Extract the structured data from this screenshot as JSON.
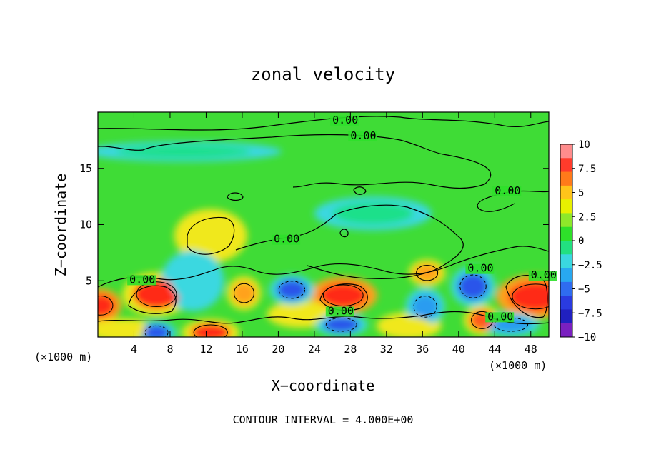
{
  "chart_data": {
    "type": "heatmap",
    "title": "zonal velocity",
    "xlabel": "X−coordinate",
    "ylabel": "Z−coordinate",
    "x_unit_label_left": "(×1000 m)",
    "x_unit_label_right": "(×1000 m)",
    "footer": "CONTOUR INTERVAL = 4.000E+00",
    "xlim": [
      0,
      50
    ],
    "ylim": [
      0,
      20
    ],
    "x_ticks": [
      "4",
      "8",
      "12",
      "16",
      "20",
      "24",
      "28",
      "32",
      "36",
      "40",
      "44",
      "48"
    ],
    "x_tick_values": [
      4,
      8,
      12,
      16,
      20,
      24,
      28,
      32,
      36,
      40,
      44,
      48
    ],
    "y_ticks": [
      "5",
      "10",
      "15"
    ],
    "y_tick_values": [
      5,
      10,
      15
    ],
    "colorbar": {
      "labels": [
        "10",
        "7.5",
        "5",
        "2.5",
        "0",
        "−2.5",
        "−5",
        "−7.5",
        "−10"
      ],
      "values": [
        10,
        7.5,
        5,
        2.5,
        0,
        -2.5,
        -5,
        -7.5,
        -10
      ],
      "colors": [
        "#ff8c8c",
        "#ff3b2b",
        "#ff7a1a",
        "#ffc41a",
        "#e8f000",
        "#8ee82a",
        "#2ee02a",
        "#22e080",
        "#3ad8e0",
        "#28a8f0",
        "#2f6cf0",
        "#2a3be0",
        "#2020c0",
        "#7a20c0"
      ]
    },
    "contour_labels": [
      {
        "text": "0.00",
        "x": 26.0,
        "z": 19.0
      },
      {
        "text": "0.00",
        "x": 28.0,
        "z": 17.6
      },
      {
        "text": "0.00",
        "x": 44.0,
        "z": 12.7
      },
      {
        "text": "0.00",
        "x": 19.5,
        "z": 8.4
      },
      {
        "text": "0.00",
        "x": 3.5,
        "z": 4.8
      },
      {
        "text": "0.00",
        "x": 25.5,
        "z": 2.0
      },
      {
        "text": "0.00",
        "x": 41.0,
        "z": 5.8
      },
      {
        "text": "0.00",
        "x": 43.2,
        "z": 1.5
      },
      {
        "text": "0.00",
        "x": 48.0,
        "z": 5.2
      }
    ],
    "features": [
      {
        "sign": "pos",
        "value": 8.5,
        "x": 6.5,
        "z": 3.8,
        "rx": 2.6,
        "rz": 1.3
      },
      {
        "sign": "pos",
        "value": 9.0,
        "x": 0.3,
        "z": 2.8,
        "rx": 1.6,
        "rz": 1.0
      },
      {
        "sign": "pos",
        "value": 8.0,
        "x": 12.5,
        "z": 0.4,
        "rx": 2.2,
        "rz": 0.8
      },
      {
        "sign": "pos",
        "value": 5.0,
        "x": 16.2,
        "z": 3.9,
        "rx": 1.3,
        "rz": 1.0
      },
      {
        "sign": "pos",
        "value": 9.0,
        "x": 27.2,
        "z": 3.7,
        "rx": 2.6,
        "rz": 1.1
      },
      {
        "sign": "pos",
        "value": 5.5,
        "x": 36.5,
        "z": 5.7,
        "rx": 1.4,
        "rz": 0.8
      },
      {
        "sign": "pos",
        "value": 6.0,
        "x": 42.6,
        "z": 1.5,
        "rx": 1.4,
        "rz": 0.9
      },
      {
        "sign": "pos",
        "value": 9.0,
        "x": 48.5,
        "z": 3.6,
        "rx": 3.0,
        "rz": 1.3
      },
      {
        "sign": "pos",
        "value": 3.5,
        "x": 12.5,
        "z": 9.0,
        "rx": 2.8,
        "rz": 1.6
      },
      {
        "sign": "pos",
        "value": 3.0,
        "x": 3.0,
        "z": 0.6,
        "rx": 2.8,
        "rz": 0.7
      },
      {
        "sign": "pos",
        "value": 3.0,
        "x": 22.5,
        "z": 2.0,
        "rx": 2.6,
        "rz": 0.8
      },
      {
        "sign": "pos",
        "value": 2.5,
        "x": 34.5,
        "z": 1.0,
        "rx": 2.5,
        "rz": 0.8
      },
      {
        "sign": "neg",
        "value": -6.5,
        "x": 21.5,
        "z": 4.2,
        "rx": 1.7,
        "rz": 0.9
      },
      {
        "sign": "neg",
        "value": -6.0,
        "x": 6.5,
        "z": 0.4,
        "rx": 1.5,
        "rz": 0.7
      },
      {
        "sign": "neg",
        "value": -6.0,
        "x": 27.0,
        "z": 1.1,
        "rx": 2.0,
        "rz": 0.7
      },
      {
        "sign": "neg",
        "value": -5.5,
        "x": 36.3,
        "z": 2.7,
        "rx": 1.5,
        "rz": 1.1
      },
      {
        "sign": "neg",
        "value": -6.5,
        "x": 41.6,
        "z": 4.5,
        "rx": 1.7,
        "rz": 1.2
      },
      {
        "sign": "neg",
        "value": -5.5,
        "x": 45.8,
        "z": 1.1,
        "rx": 2.2,
        "rz": 0.7
      },
      {
        "sign": "neg",
        "value": -3.0,
        "x": 10.5,
        "z": 5.0,
        "rx": 2.4,
        "rz": 1.8
      },
      {
        "sign": "neg",
        "value": -2.0,
        "x": 9.5,
        "z": 16.5,
        "rx": 7.5,
        "rz": 0.6
      },
      {
        "sign": "neg",
        "value": -2.0,
        "x": 30.5,
        "z": 11.0,
        "rx": 4.5,
        "rz": 1.0
      }
    ]
  }
}
